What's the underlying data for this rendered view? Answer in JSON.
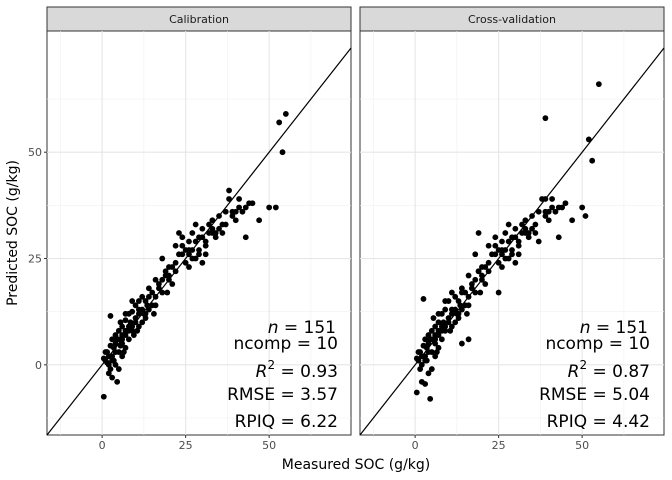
{
  "chart_data": [
    {
      "type": "scatter",
      "title": "Calibration",
      "xlabel": "Measured SOC (g/kg)",
      "ylabel": "Predicted SOC (g/kg)",
      "xlim": [
        -16.5,
        74.5
      ],
      "ylim": [
        -16.5,
        78.5
      ],
      "x_ticks": [
        0,
        25,
        50
      ],
      "y_ticks": [
        0,
        25,
        50
      ],
      "grid": true,
      "reference_line": "1:1",
      "stats": {
        "n_label": "n",
        "n": "= 151",
        "ncomp": "ncomp = 10",
        "r2_label": "R",
        "r2_sup": "2",
        "r2": "= 0.93",
        "rmse": "RMSE = 3.57",
        "rpiq": "RPIQ = 6.22"
      },
      "points": [
        [
          0.5,
          -7.5
        ],
        [
          1.5,
          0.5
        ],
        [
          2,
          -2
        ],
        [
          2.5,
          11.5
        ],
        [
          3,
          -3
        ],
        [
          4,
          0
        ],
        [
          4.5,
          -4
        ],
        [
          5,
          -1
        ],
        [
          1,
          3
        ],
        [
          2,
          2
        ],
        [
          3,
          1
        ],
        [
          3.5,
          4
        ],
        [
          4,
          5
        ],
        [
          5,
          3
        ],
        [
          6,
          2
        ],
        [
          0.5,
          1.5
        ],
        [
          1.5,
          3
        ],
        [
          2.5,
          4.5
        ],
        [
          3,
          6
        ],
        [
          4,
          7
        ],
        [
          5,
          8
        ],
        [
          6,
          5
        ],
        [
          7,
          4
        ],
        [
          6,
          9
        ],
        [
          7,
          7
        ],
        [
          8,
          6
        ],
        [
          5.5,
          10
        ],
        [
          7,
          10.5
        ],
        [
          8,
          9
        ],
        [
          9,
          8
        ],
        [
          8,
          12
        ],
        [
          9,
          12.5
        ],
        [
          10,
          11
        ],
        [
          10,
          14
        ],
        [
          11,
          15
        ],
        [
          12,
          13
        ],
        [
          13,
          12
        ],
        [
          13,
          15
        ],
        [
          14,
          16
        ],
        [
          12,
          10
        ],
        [
          11,
          9
        ],
        [
          15,
          14
        ],
        [
          16,
          16
        ],
        [
          17,
          18
        ],
        [
          18,
          17
        ],
        [
          16,
          20
        ],
        [
          18,
          20
        ],
        [
          19,
          21
        ],
        [
          20,
          21
        ],
        [
          21,
          19
        ],
        [
          21,
          23
        ],
        [
          18,
          25
        ],
        [
          22,
          28
        ],
        [
          23,
          31
        ],
        [
          24,
          28
        ],
        [
          25,
          24
        ],
        [
          26,
          26
        ],
        [
          26,
          23
        ],
        [
          27,
          27
        ],
        [
          28,
          25
        ],
        [
          29,
          27
        ],
        [
          30,
          30
        ],
        [
          30,
          24
        ],
        [
          31,
          26
        ],
        [
          31,
          29
        ],
        [
          32,
          33
        ],
        [
          33,
          34
        ],
        [
          33,
          31
        ],
        [
          34,
          30
        ],
        [
          35,
          32
        ],
        [
          36,
          31
        ],
        [
          37,
          36
        ],
        [
          38,
          39
        ],
        [
          38,
          41
        ],
        [
          39,
          36
        ],
        [
          39,
          35
        ],
        [
          40,
          34
        ],
        [
          41,
          37
        ],
        [
          42,
          36
        ],
        [
          43,
          37
        ],
        [
          45,
          38
        ],
        [
          47,
          34
        ],
        [
          50,
          37
        ],
        [
          52,
          37
        ],
        [
          53,
          57
        ],
        [
          54,
          50
        ],
        [
          55,
          59
        ],
        [
          24,
          30
        ],
        [
          26,
          29
        ],
        [
          28,
          33
        ],
        [
          29,
          26
        ],
        [
          27,
          31
        ],
        [
          25,
          27
        ],
        [
          23,
          26
        ],
        [
          22,
          24
        ],
        [
          20,
          20
        ],
        [
          19,
          22
        ],
        [
          17,
          19
        ],
        [
          15,
          17
        ],
        [
          14,
          13
        ],
        [
          13,
          11
        ],
        [
          11,
          12
        ],
        [
          10,
          10
        ],
        [
          9,
          9
        ],
        [
          8,
          8
        ],
        [
          7,
          8
        ],
        [
          6,
          7
        ],
        [
          5,
          6
        ],
        [
          4,
          3
        ],
        [
          3,
          2
        ],
        [
          2,
          0
        ],
        [
          1,
          1
        ],
        [
          2.5,
          -1
        ],
        [
          3.5,
          1
        ],
        [
          6,
          6
        ],
        [
          7,
          12
        ],
        [
          9,
          15
        ],
        [
          11,
          13
        ],
        [
          12,
          16
        ],
        [
          14,
          18
        ],
        [
          16,
          14
        ],
        [
          20,
          23
        ],
        [
          22,
          22
        ],
        [
          24,
          26
        ],
        [
          28,
          29
        ],
        [
          30,
          32
        ],
        [
          32,
          31
        ],
        [
          34,
          31
        ],
        [
          36,
          33
        ],
        [
          40,
          36
        ],
        [
          26,
          27
        ],
        [
          27,
          25
        ],
        [
          29,
          30
        ],
        [
          31,
          28
        ],
        [
          33,
          32
        ],
        [
          35,
          35
        ],
        [
          37,
          33
        ],
        [
          41,
          39
        ],
        [
          44,
          38
        ],
        [
          43,
          30
        ],
        [
          4.5,
          6
        ],
        [
          5.5,
          4.5
        ],
        [
          6.5,
          3
        ],
        [
          7.5,
          8
        ],
        [
          8.5,
          10
        ],
        [
          9.5,
          7
        ],
        [
          10.5,
          8
        ],
        [
          12.5,
          12
        ],
        [
          13.5,
          14
        ],
        [
          15.5,
          12
        ],
        [
          19.5,
          17
        ]
      ]
    },
    {
      "type": "scatter",
      "title": "Cross-validation",
      "xlabel": "Measured SOC (g/kg)",
      "ylabel": "Predicted SOC (g/kg)",
      "xlim": [
        -16.5,
        74.5
      ],
      "ylim": [
        -16.5,
        78.5
      ],
      "x_ticks": [
        0,
        25,
        50
      ],
      "y_ticks": [
        0,
        25,
        50
      ],
      "grid": true,
      "reference_line": "1:1",
      "stats": {
        "n_label": "n",
        "n": "= 151",
        "ncomp": "ncomp = 10",
        "r2_label": "R",
        "r2_sup": "2",
        "r2": "= 0.87",
        "rmse": "RMSE = 5.04",
        "rpiq": "RPIQ = 4.42"
      },
      "points": [
        [
          0.5,
          -6.5
        ],
        [
          1.5,
          -1
        ],
        [
          2,
          -4
        ],
        [
          2.5,
          15.5
        ],
        [
          3,
          -4.5
        ],
        [
          4,
          -2
        ],
        [
          4.5,
          -8
        ],
        [
          5,
          -1
        ],
        [
          1,
          3
        ],
        [
          2,
          2
        ],
        [
          3,
          1
        ],
        [
          3.5,
          4
        ],
        [
          4,
          5
        ],
        [
          5,
          3
        ],
        [
          6,
          2
        ],
        [
          0.5,
          1.5
        ],
        [
          1.5,
          3
        ],
        [
          2.5,
          4.5
        ],
        [
          3,
          6
        ],
        [
          4,
          7
        ],
        [
          5,
          8
        ],
        [
          6,
          5
        ],
        [
          7,
          4
        ],
        [
          6,
          9
        ],
        [
          7,
          7
        ],
        [
          8,
          6
        ],
        [
          5.5,
          11
        ],
        [
          7,
          10
        ],
        [
          8,
          9
        ],
        [
          9,
          8
        ],
        [
          8,
          12
        ],
        [
          9,
          13
        ],
        [
          10,
          11
        ],
        [
          10,
          15
        ],
        [
          11,
          17
        ],
        [
          12,
          13
        ],
        [
          13,
          12
        ],
        [
          13,
          15
        ],
        [
          14,
          17
        ],
        [
          12,
          10
        ],
        [
          11,
          9
        ],
        [
          15,
          14
        ],
        [
          16,
          16
        ],
        [
          17,
          18
        ],
        [
          18,
          17
        ],
        [
          16,
          21
        ],
        [
          18,
          20
        ],
        [
          19,
          22
        ],
        [
          20,
          21
        ],
        [
          21,
          19
        ],
        [
          21,
          23
        ],
        [
          18,
          26
        ],
        [
          22,
          28
        ],
        [
          19,
          31
        ],
        [
          24,
          28
        ],
        [
          25,
          24
        ],
        [
          26,
          26
        ],
        [
          26,
          23
        ],
        [
          27,
          27
        ],
        [
          28,
          25
        ],
        [
          29,
          27
        ],
        [
          30,
          30
        ],
        [
          30,
          24
        ],
        [
          31,
          26
        ],
        [
          31,
          29
        ],
        [
          32,
          33
        ],
        [
          33,
          34
        ],
        [
          33,
          31
        ],
        [
          34,
          30
        ],
        [
          35,
          32
        ],
        [
          36,
          31
        ],
        [
          37,
          36
        ],
        [
          38,
          39
        ],
        [
          39,
          39
        ],
        [
          39,
          36
        ],
        [
          39,
          35
        ],
        [
          40,
          34
        ],
        [
          41,
          37
        ],
        [
          42,
          36
        ],
        [
          43,
          37
        ],
        [
          45,
          38
        ],
        [
          47,
          34
        ],
        [
          50,
          37
        ],
        [
          51,
          35
        ],
        [
          52,
          53
        ],
        [
          53,
          48
        ],
        [
          55,
          66
        ],
        [
          39,
          58
        ],
        [
          24,
          30
        ],
        [
          26,
          29
        ],
        [
          28,
          33
        ],
        [
          29,
          26
        ],
        [
          27,
          31
        ],
        [
          25,
          27
        ],
        [
          23,
          26
        ],
        [
          22,
          24
        ],
        [
          20,
          20
        ],
        [
          19,
          22
        ],
        [
          17,
          19
        ],
        [
          15,
          17
        ],
        [
          14,
          13
        ],
        [
          13,
          11
        ],
        [
          11,
          12
        ],
        [
          10,
          10
        ],
        [
          9,
          9
        ],
        [
          8,
          8
        ],
        [
          7,
          8
        ],
        [
          6,
          7
        ],
        [
          5,
          6
        ],
        [
          4,
          3
        ],
        [
          3,
          2
        ],
        [
          2,
          0
        ],
        [
          1,
          1
        ],
        [
          6,
          6
        ],
        [
          7,
          12
        ],
        [
          9,
          15
        ],
        [
          11,
          13
        ],
        [
          12,
          16
        ],
        [
          14,
          18
        ],
        [
          16,
          14
        ],
        [
          20,
          23
        ],
        [
          22,
          22
        ],
        [
          24,
          26
        ],
        [
          28,
          29
        ],
        [
          30,
          32
        ],
        [
          32,
          31
        ],
        [
          34,
          31
        ],
        [
          36,
          33
        ],
        [
          40,
          36
        ],
        [
          26,
          27
        ],
        [
          27,
          25
        ],
        [
          29,
          30
        ],
        [
          31,
          28
        ],
        [
          33,
          32
        ],
        [
          35,
          35
        ],
        [
          37,
          29
        ],
        [
          41,
          39
        ],
        [
          44,
          37
        ],
        [
          43,
          30
        ],
        [
          25,
          17
        ],
        [
          14,
          5
        ],
        [
          16,
          6
        ],
        [
          4.5,
          6
        ],
        [
          6.5,
          3
        ],
        [
          8.5,
          10
        ],
        [
          10.5,
          8
        ],
        [
          12.5,
          12
        ],
        [
          13.5,
          14
        ],
        [
          15.5,
          12
        ],
        [
          19.5,
          17
        ],
        [
          3.5,
          1
        ]
      ]
    }
  ]
}
